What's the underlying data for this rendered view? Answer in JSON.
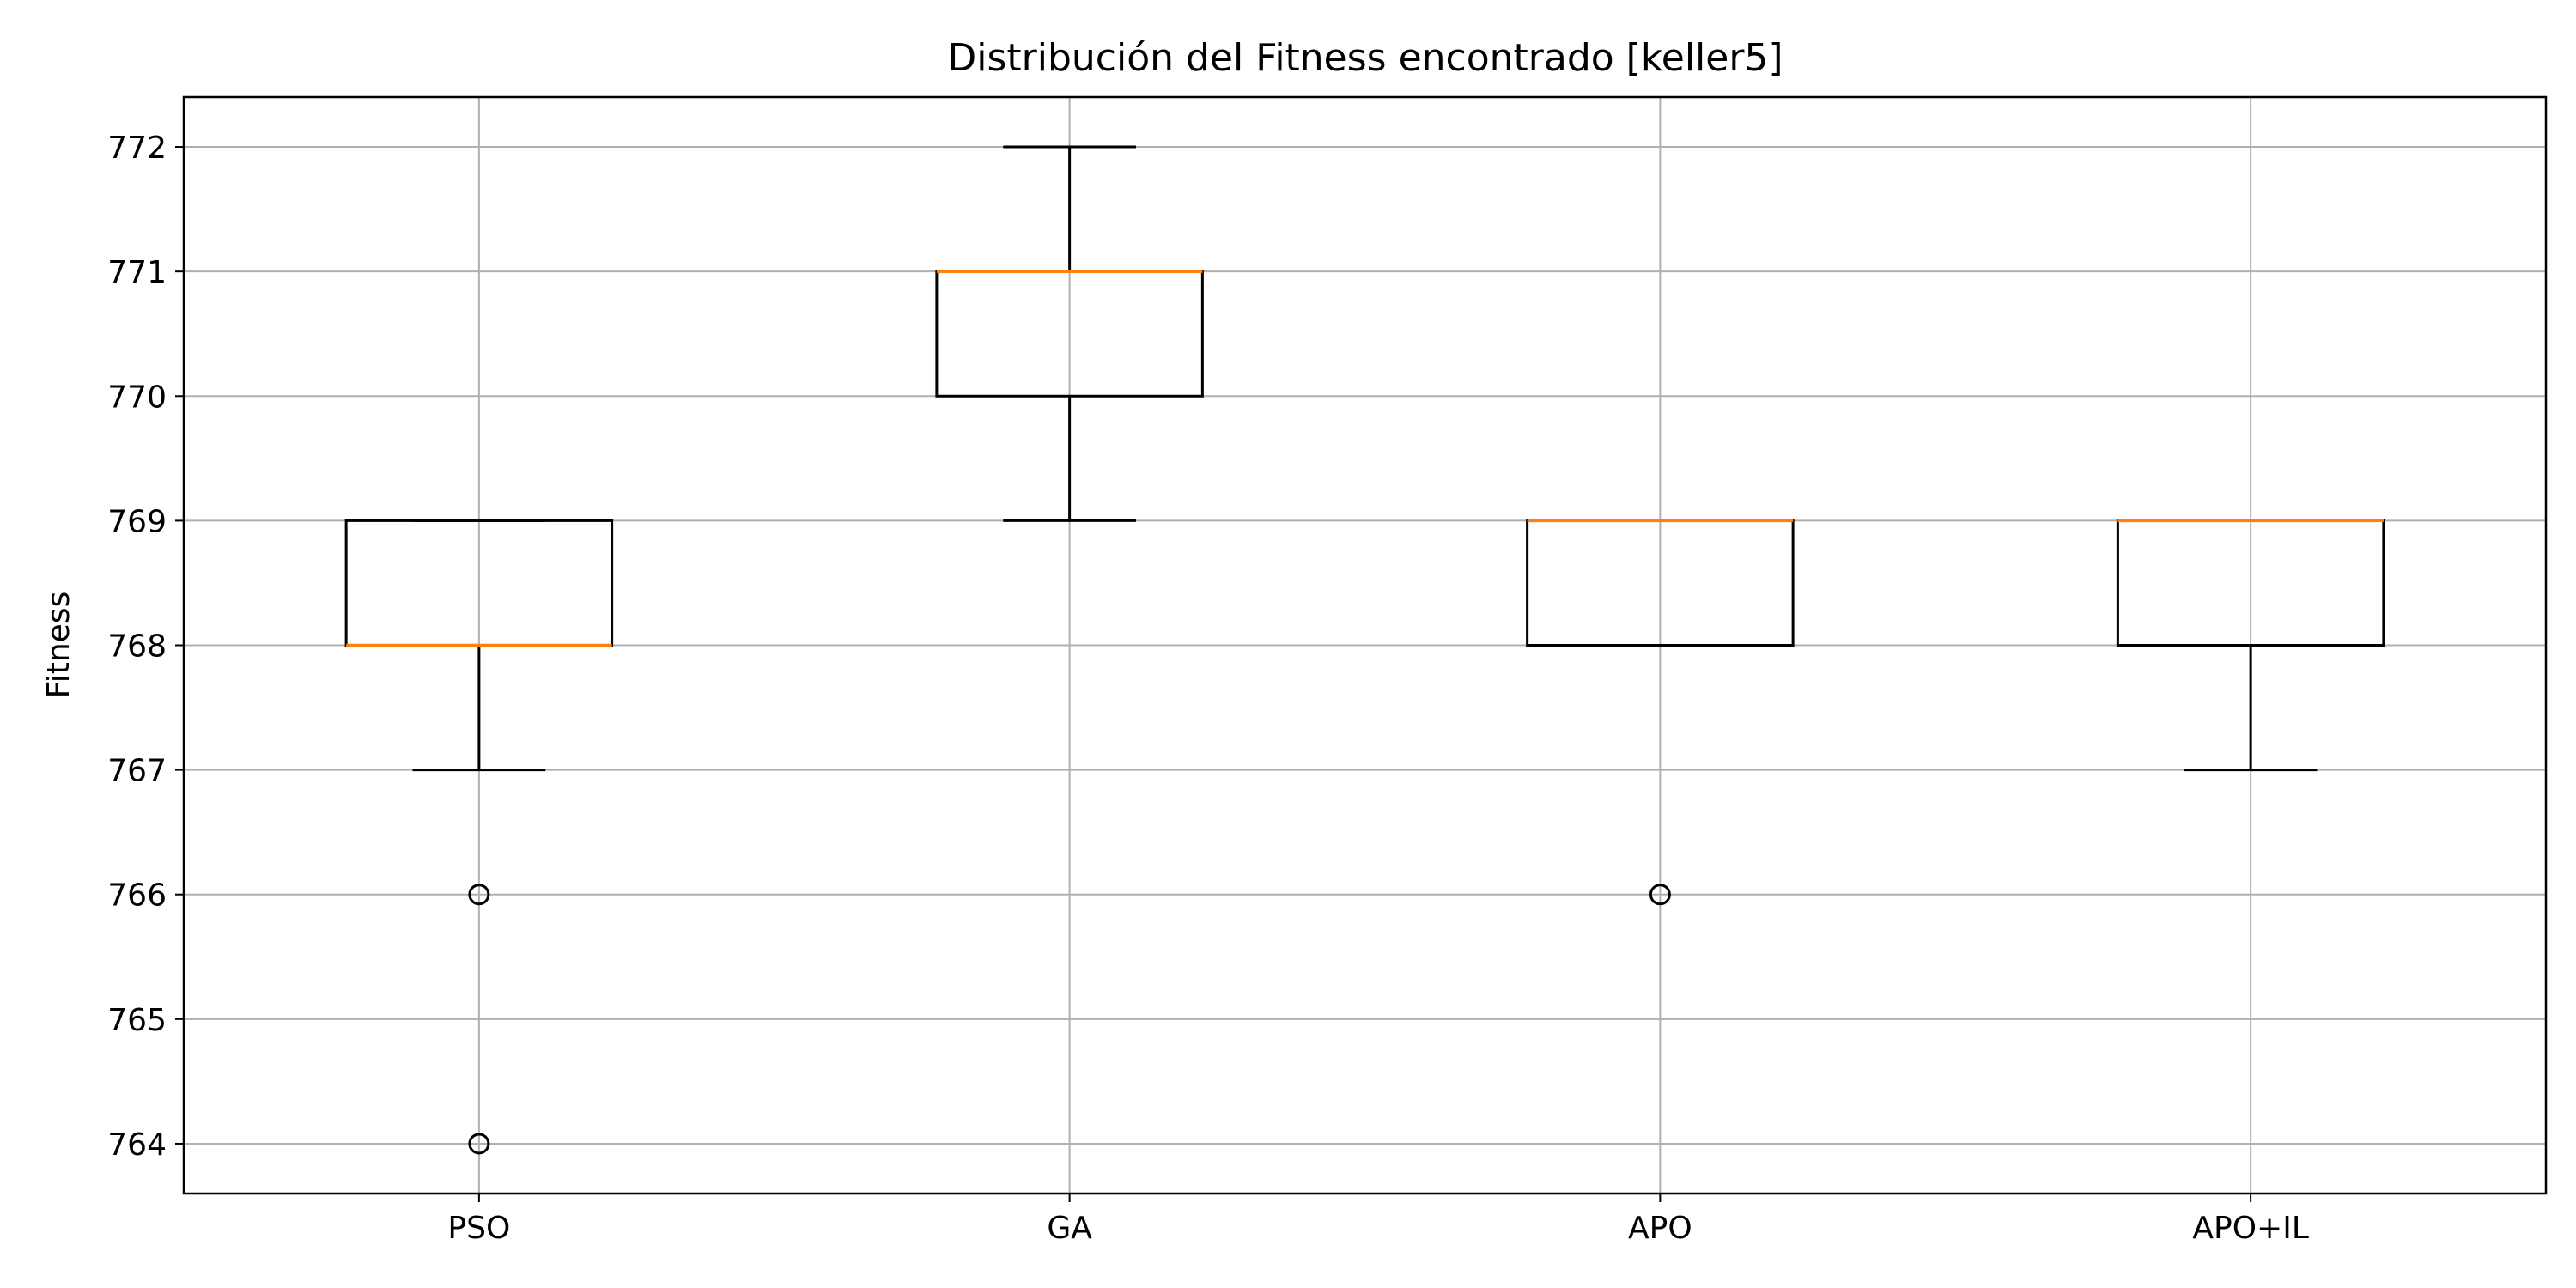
{
  "chart_data": {
    "type": "boxplot",
    "title": "Distribución del Fitness encontrado [keller5]",
    "xlabel": "",
    "ylabel": "Fitness",
    "categories": [
      "PSO",
      "GA",
      "APO",
      "APO+IL"
    ],
    "ylim": [
      763.6,
      772.4
    ],
    "yticks": [
      764,
      765,
      766,
      767,
      768,
      769,
      770,
      771,
      772
    ],
    "grid": true,
    "boxes": [
      {
        "label": "PSO",
        "whisker_low": 767,
        "q1": 768,
        "median": 768,
        "q3": 769,
        "whisker_high": 769,
        "outliers": [
          766,
          764
        ]
      },
      {
        "label": "GA",
        "whisker_low": 769,
        "q1": 770,
        "median": 771,
        "q3": 771,
        "whisker_high": 772,
        "outliers": []
      },
      {
        "label": "APO",
        "whisker_low": 768,
        "q1": 768,
        "median": 769,
        "q3": 769,
        "whisker_high": 769,
        "outliers": [
          766
        ]
      },
      {
        "label": "APO+IL",
        "whisker_low": 767,
        "q1": 768,
        "median": 769,
        "q3": 769,
        "whisker_high": 769,
        "outliers": []
      }
    ],
    "colors": {
      "box": "#000000",
      "median": "#ff7f0e",
      "grid": "#b0b0b0"
    }
  }
}
